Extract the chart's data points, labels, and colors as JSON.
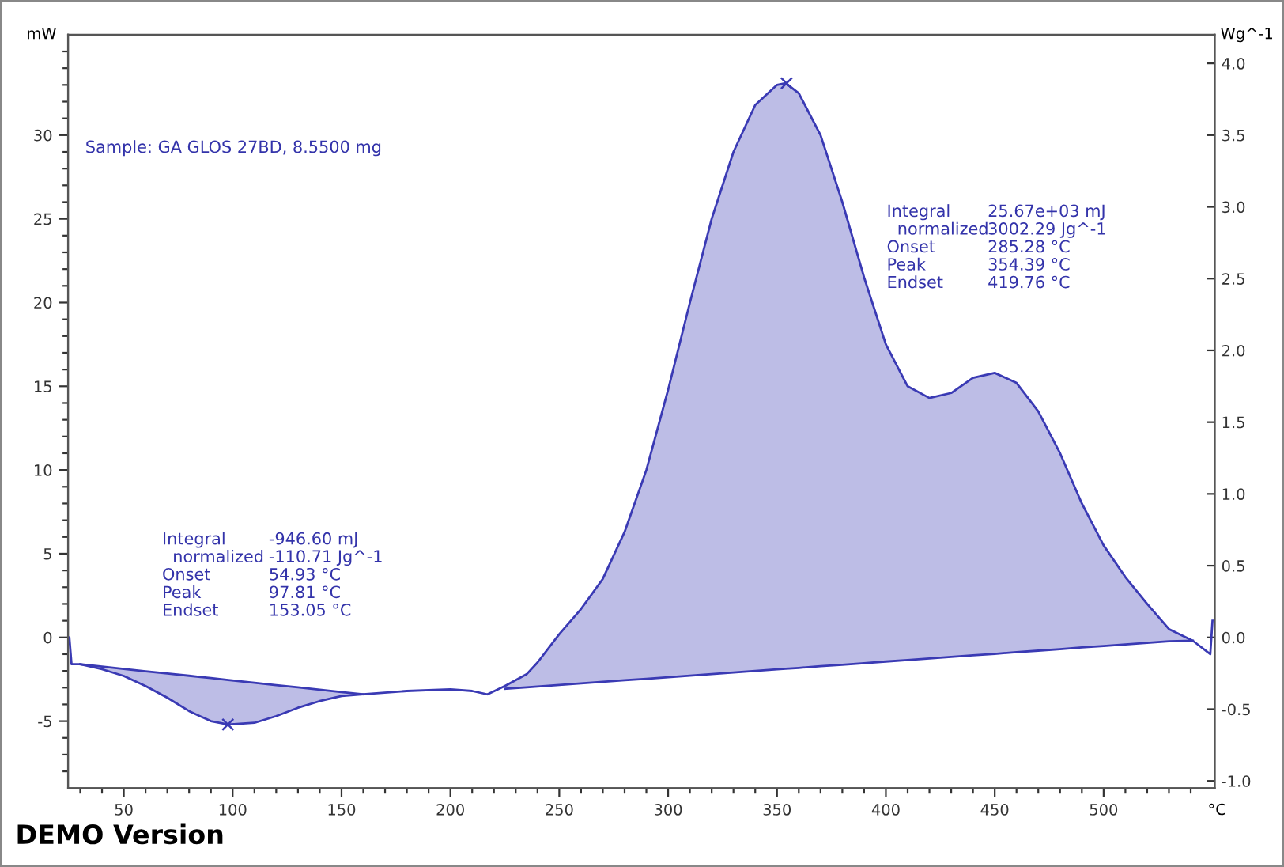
{
  "chart_data": {
    "type": "line",
    "ylabel": "mW",
    "y2label": "Wg^-1",
    "xlabel": "°C",
    "xlim": [
      24.4,
      551
    ],
    "ylim": [
      -9,
      36
    ],
    "y2lim": [
      -1.05,
      4.2
    ],
    "xticks": [
      {
        "value": 30,
        "label": null
      },
      {
        "value": 40,
        "label": null
      },
      50,
      {
        "value": 60,
        "label": null
      },
      {
        "value": 70,
        "label": null
      },
      {
        "value": 80,
        "label": null
      },
      {
        "value": 90,
        "label": null
      },
      100,
      {
        "value": 110,
        "label": null
      },
      {
        "value": 120,
        "label": null
      },
      {
        "value": 130,
        "label": null
      },
      {
        "value": 140,
        "label": null
      },
      150,
      {
        "value": 160,
        "label": null
      },
      {
        "value": 170,
        "label": null
      },
      {
        "value": 180,
        "label": null
      },
      {
        "value": 190,
        "label": null
      },
      200,
      {
        "value": 210,
        "label": null
      },
      {
        "value": 220,
        "label": null
      },
      {
        "value": 230,
        "label": null
      },
      {
        "value": 240,
        "label": null
      },
      250,
      {
        "value": 260,
        "label": null
      },
      {
        "value": 270,
        "label": null
      },
      {
        "value": 280,
        "label": null
      },
      {
        "value": 290,
        "label": null
      },
      300,
      {
        "value": 310,
        "label": null
      },
      {
        "value": 320,
        "label": null
      },
      {
        "value": 330,
        "label": null
      },
      {
        "value": 340,
        "label": null
      },
      350,
      {
        "value": 360,
        "label": null
      },
      {
        "value": 370,
        "label": null
      },
      {
        "value": 380,
        "label": null
      },
      {
        "value": 390,
        "label": null
      },
      400,
      {
        "value": 410,
        "label": null
      },
      {
        "value": 420,
        "label": null
      },
      {
        "value": 430,
        "label": null
      },
      {
        "value": 440,
        "label": null
      },
      450,
      {
        "value": 460,
        "label": null
      },
      {
        "value": 470,
        "label": null
      },
      {
        "value": 480,
        "label": null
      },
      {
        "value": 490,
        "label": null
      },
      500,
      {
        "value": 510,
        "label": null
      },
      {
        "value": 520,
        "label": null
      },
      {
        "value": 530,
        "label": null
      },
      {
        "value": 540,
        "label": null
      }
    ],
    "yticks": [
      {
        "value": -8,
        "label": null
      },
      {
        "value": -7,
        "label": null
      },
      {
        "value": -6,
        "label": null
      },
      -5,
      {
        "value": -4,
        "label": null
      },
      {
        "value": -3,
        "label": null
      },
      {
        "value": -2,
        "label": null
      },
      {
        "value": -1,
        "label": null
      },
      0,
      {
        "value": 1,
        "label": null
      },
      {
        "value": 2,
        "label": null
      },
      {
        "value": 3,
        "label": null
      },
      {
        "value": 4,
        "label": null
      },
      5,
      {
        "value": 6,
        "label": null
      },
      {
        "value": 7,
        "label": null
      },
      {
        "value": 8,
        "label": null
      },
      {
        "value": 9,
        "label": null
      },
      10,
      {
        "value": 11,
        "label": null
      },
      {
        "value": 12,
        "label": null
      },
      {
        "value": 13,
        "label": null
      },
      {
        "value": 14,
        "label": null
      },
      15,
      {
        "value": 16,
        "label": null
      },
      {
        "value": 17,
        "label": null
      },
      {
        "value": 18,
        "label": null
      },
      {
        "value": 19,
        "label": null
      },
      20,
      {
        "value": 21,
        "label": null
      },
      {
        "value": 22,
        "label": null
      },
      {
        "value": 23,
        "label": null
      },
      {
        "value": 24,
        "label": null
      },
      25,
      {
        "value": 26,
        "label": null
      },
      {
        "value": 27,
        "label": null
      },
      {
        "value": 28,
        "label": null
      },
      {
        "value": 29,
        "label": null
      },
      30,
      {
        "value": 31,
        "label": null
      },
      {
        "value": 32,
        "label": null
      },
      {
        "value": 33,
        "label": null
      },
      {
        "value": 34,
        "label": null
      },
      {
        "value": 35,
        "label": null
      }
    ],
    "y2ticks": [
      {
        "value": -1.0,
        "label": "-1.0"
      },
      {
        "value": -0.5,
        "label": "-0.5"
      },
      {
        "value": 0.0,
        "label": "0.0"
      },
      {
        "value": 0.5,
        "label": "0.5"
      },
      {
        "value": 1.0,
        "label": "1.0"
      },
      {
        "value": 1.5,
        "label": "1.5"
      },
      {
        "value": 2.0,
        "label": "2.0"
      },
      {
        "value": 2.5,
        "label": "2.5"
      },
      {
        "value": 3.0,
        "label": "3.0"
      },
      {
        "value": 3.5,
        "label": "3.5"
      },
      {
        "value": 4.0,
        "label": "4.0"
      }
    ],
    "grid": false,
    "legend": false,
    "series": [
      {
        "type": "line",
        "color": "#3a3ab4",
        "x": [
          25,
          26,
          30,
          40,
          50,
          60,
          70,
          80,
          90,
          98,
          110,
          120,
          130,
          140,
          150,
          160,
          180,
          200,
          210,
          217,
          225,
          235,
          240,
          250,
          260,
          270,
          280,
          290,
          300,
          310,
          320,
          330,
          340,
          350,
          354,
          360,
          370,
          380,
          390,
          400,
          410,
          420,
          430,
          440,
          450,
          460,
          470,
          480,
          490,
          500,
          510,
          520,
          530,
          541,
          549,
          550
        ],
        "values": [
          0,
          -1.6,
          -1.6,
          -1.9,
          -2.3,
          -2.9,
          -3.6,
          -4.4,
          -5.0,
          -5.2,
          -5.1,
          -4.7,
          -4.2,
          -3.8,
          -3.5,
          -3.4,
          -3.2,
          -3.1,
          -3.2,
          -3.4,
          -2.9,
          -2.2,
          -1.5,
          0.2,
          1.7,
          3.5,
          6.3,
          10,
          14.8,
          20,
          25,
          29,
          31.8,
          33.0,
          33.1,
          32.5,
          30,
          26,
          21.5,
          17.5,
          15,
          14.3,
          14.6,
          15.5,
          15.8,
          15.2,
          13.5,
          11,
          8,
          5.5,
          3.6,
          2,
          0.5,
          -0.2,
          -1.0,
          1.0
        ]
      },
      {
        "type": "line",
        "color": "#3a3ab4",
        "x": [
          30,
          40,
          50,
          60,
          70,
          80,
          90,
          98,
          110,
          120,
          130,
          140,
          150,
          160
        ],
        "lower": [
          -1.6,
          -1.9,
          -2.3,
          -2.9,
          -3.6,
          -4.4,
          -5.0,
          -5.2,
          -5.1,
          -4.7,
          -4.2,
          -3.8,
          -3.5,
          -3.4
        ],
        "values": [
          -1.6,
          -1.74,
          -1.88,
          -2.02,
          -2.15,
          -2.29,
          -2.43,
          -2.54,
          -2.71,
          -2.85,
          -2.98,
          -3.12,
          -3.26,
          -3.4
        ],
        "upper": [
          -1.6,
          -1.74,
          -1.88,
          -2.02,
          -2.15,
          -2.29,
          -2.43,
          -2.54,
          -2.71,
          -2.85,
          -2.98,
          -3.12,
          -3.26,
          -3.4
        ]
      },
      {
        "type": "line",
        "color": "#3a3ab4",
        "x": [
          225,
          235,
          240,
          250,
          260,
          270,
          280,
          290,
          300,
          310,
          320,
          330,
          340,
          350,
          354,
          360,
          370,
          380,
          390,
          400,
          410,
          420,
          430,
          440,
          450,
          460,
          470,
          480,
          490,
          500,
          510,
          520,
          530,
          541
        ],
        "upper": [
          -2.9,
          -2.2,
          -1.5,
          0.2,
          1.7,
          3.5,
          6.3,
          10,
          14.8,
          20,
          25,
          29,
          31.8,
          33.0,
          33.1,
          32.5,
          30,
          26,
          21.5,
          17.5,
          15,
          14.3,
          14.6,
          15.5,
          15.8,
          15.2,
          13.5,
          11,
          8,
          5.5,
          3.6,
          2,
          0.5,
          -0.2
        ],
        "lower": [
          -3.07,
          -2.98,
          -2.93,
          -2.84,
          -2.75,
          -2.65,
          -2.56,
          -2.47,
          -2.38,
          -2.28,
          -2.19,
          -2.1,
          -2.0,
          -1.91,
          -1.87,
          -1.82,
          -1.72,
          -1.63,
          -1.54,
          -1.44,
          -1.35,
          -1.26,
          -1.16,
          -1.07,
          -0.98,
          -0.88,
          -0.79,
          -0.7,
          -0.6,
          -0.51,
          -0.42,
          -0.32,
          -0.23,
          -0.2
        ],
        "values": [
          -3.07,
          -2.98,
          -2.93,
          -2.84,
          -2.75,
          -2.65,
          -2.56,
          -2.47,
          -2.38,
          -2.28,
          -2.19,
          -2.1,
          -2.0,
          -1.91,
          -1.87,
          -1.82,
          -1.72,
          -1.63,
          -1.54,
          -1.44,
          -1.35,
          -1.26,
          -1.16,
          -1.07,
          -0.98,
          -0.88,
          -0.79,
          -0.7,
          -0.6,
          -0.51,
          -0.42,
          -0.32,
          -0.23,
          -0.2
        ]
      },
      {
        "type": "scatter",
        "color": "#3a3ab4",
        "marker": "cross",
        "x": [
          97.81,
          354.39
        ],
        "values": [
          -5.2,
          33.1
        ]
      }
    ],
    "annotations": [
      "Sample: GA GLOS 27BD, 8.5500 mg",
      "Integral\n  normalized\nOnset\nPeak\nEndset",
      "-946.60 mJ\n-110.71 Jg^-1\n54.93 °C\n97.81 °C\n153.05 °C",
      "Integral\n  normalized\nOnset\nPeak\nEndset",
      "25.67e+03 mJ\n3002.29 Jg^-1\n285.28 °C\n354.39 °C\n419.76 °C",
      "DEMO Version"
    ]
  }
}
